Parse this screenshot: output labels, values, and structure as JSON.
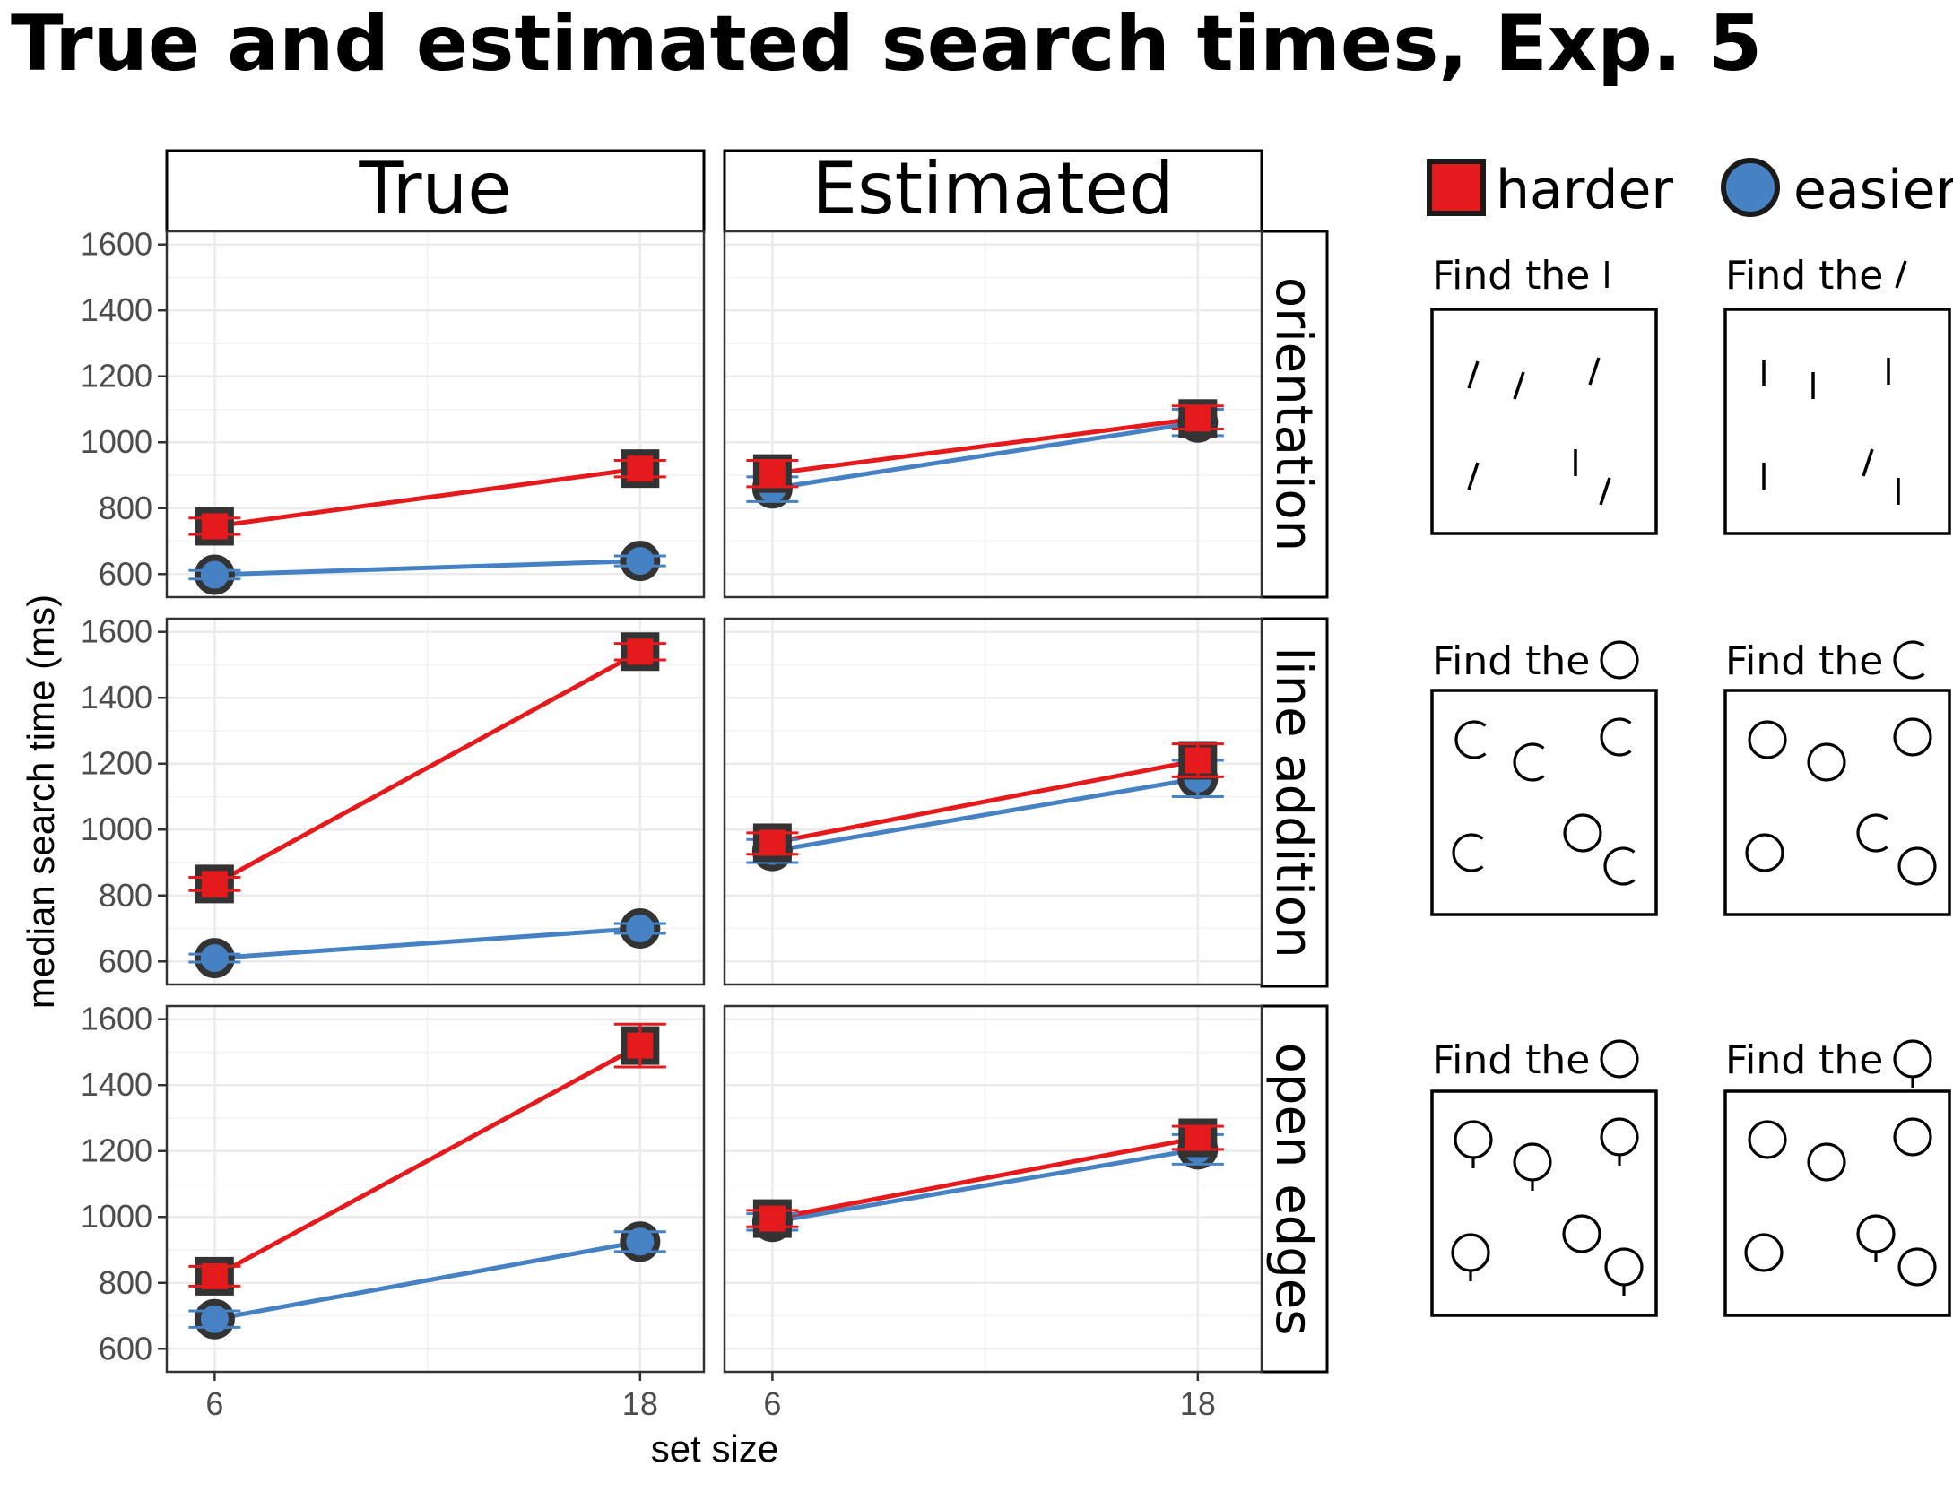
{
  "chart_data": {
    "type": "line",
    "title": "True and estimated search times, Exp. 5",
    "xlabel": "set size",
    "ylabel": "median search time (ms)",
    "x": [
      6,
      18
    ],
    "x_ticks": [
      "6",
      "18"
    ],
    "y_ticks": [
      "600",
      "800",
      "1000",
      "1200",
      "1400",
      "1600"
    ],
    "ylim": [
      530,
      1640
    ],
    "grid": true,
    "columns": [
      "True",
      "Estimated"
    ],
    "rows": [
      "orientation",
      "line addition",
      "open edges"
    ],
    "legend": {
      "position": "top-right",
      "entries": [
        {
          "label": "harder",
          "color": "#e41a1c",
          "marker": "square"
        },
        {
          "label": "easier",
          "color": "#4682c3",
          "marker": "circle"
        }
      ]
    },
    "panels": [
      {
        "row": "orientation",
        "column": "True",
        "series": [
          {
            "name": "harder",
            "values": [
              745,
              920
            ],
            "err_lo": [
              720,
              895
            ],
            "err_hi": [
              770,
              945
            ]
          },
          {
            "name": "easier",
            "values": [
              598,
              640
            ],
            "err_lo": [
              585,
              625
            ],
            "err_hi": [
              611,
              655
            ]
          }
        ]
      },
      {
        "row": "orientation",
        "column": "Estimated",
        "series": [
          {
            "name": "harder",
            "values": [
              905,
              1072
            ],
            "err_lo": [
              865,
              1040
            ],
            "err_hi": [
              945,
              1110
            ]
          },
          {
            "name": "easier",
            "values": [
              860,
              1060
            ],
            "err_lo": [
              820,
              1020
            ],
            "err_hi": [
              895,
              1100
            ]
          }
        ]
      },
      {
        "row": "line addition",
        "column": "True",
        "series": [
          {
            "name": "harder",
            "values": [
              835,
              1540
            ],
            "err_lo": [
              815,
              1515
            ],
            "err_hi": [
              855,
              1565
            ]
          },
          {
            "name": "easier",
            "values": [
              610,
              700
            ],
            "err_lo": [
              598,
              685
            ],
            "err_hi": [
              622,
              715
            ]
          }
        ]
      },
      {
        "row": "line addition",
        "column": "Estimated",
        "series": [
          {
            "name": "harder",
            "values": [
              960,
              1210
            ],
            "err_lo": [
              925,
              1160
            ],
            "err_hi": [
              990,
              1260
            ]
          },
          {
            "name": "easier",
            "values": [
              935,
              1155
            ],
            "err_lo": [
              900,
              1100
            ],
            "err_hi": [
              970,
              1210
            ]
          }
        ]
      },
      {
        "row": "open edges",
        "column": "True",
        "series": [
          {
            "name": "harder",
            "values": [
              820,
              1520
            ],
            "err_lo": [
              790,
              1455
            ],
            "err_hi": [
              850,
              1585
            ]
          },
          {
            "name": "easier",
            "values": [
              690,
              925
            ],
            "err_lo": [
              665,
              895
            ],
            "err_hi": [
              715,
              955
            ]
          }
        ]
      },
      {
        "row": "open edges",
        "column": "Estimated",
        "series": [
          {
            "name": "harder",
            "values": [
              995,
              1240
            ],
            "err_lo": [
              970,
              1205
            ],
            "err_hi": [
              1020,
              1275
            ]
          },
          {
            "name": "easier",
            "values": [
              985,
              1205
            ],
            "err_lo": [
              960,
              1160
            ],
            "err_hi": [
              1010,
              1250
            ]
          }
        ]
      }
    ]
  },
  "examples": {
    "find_prefix": "Find the",
    "rows": [
      {
        "row": "orientation",
        "harder_target": "vertical line",
        "easier_target": "tilted line"
      },
      {
        "row": "line addition",
        "harder_target": "circle",
        "easier_target": "open circle"
      },
      {
        "row": "open edges",
        "harder_target": "circle",
        "easier_target": "circle with line"
      }
    ]
  }
}
